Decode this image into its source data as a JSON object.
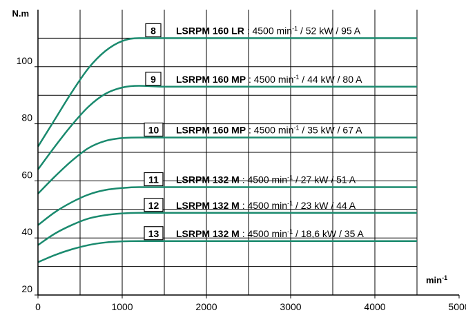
{
  "chart_data": {
    "type": "line",
    "ylabel": "N.m",
    "xlabel": "min-1",
    "xlim": [
      0,
      5000
    ],
    "ylim": [
      20,
      120
    ],
    "x_ticks": [
      "0",
      "1000",
      "2000",
      "3000",
      "4000",
      "5000"
    ],
    "y_ticks": [
      "20",
      "40",
      "60",
      "80",
      "100"
    ],
    "line_color": "#1a8a6e",
    "grid": true,
    "x": [
      0,
      200,
      400,
      600,
      800,
      1000,
      1200,
      1500,
      2000,
      3000,
      4000,
      4500
    ],
    "series": [
      {
        "num": "8",
        "model": "LSRPM 160 LR",
        "specs": " : 4500 min-1 / 52 kW / 95 A",
        "values": [
          72,
          81.5,
          91,
          99.5,
          105.5,
          109,
          110,
          110,
          110,
          110,
          110,
          110
        ]
      },
      {
        "num": "9",
        "model": "LSRPM 160 MP",
        "specs": " : 4500 min-1 / 44 kW / 80 A",
        "values": [
          64,
          72,
          79.5,
          86,
          90.5,
          92.7,
          93.3,
          93,
          93,
          93,
          93,
          93
        ]
      },
      {
        "num": "10",
        "model": "LSRPM 160 MP",
        "specs": " : 4500 min-1 / 35 kW / 67 A",
        "values": [
          55.5,
          61.5,
          67,
          71.5,
          74,
          75,
          75.2,
          75.2,
          75.2,
          75.2,
          75.2,
          75.2
        ]
      },
      {
        "num": "11",
        "model": "LSRPM 132 M",
        "specs": " : 4500 min-1 / 27 kW / 51 A",
        "values": [
          44.5,
          49,
          52.5,
          55.2,
          56.8,
          57.5,
          57.8,
          57.8,
          57.8,
          57.8,
          57.8,
          57.8
        ]
      },
      {
        "num": "12",
        "model": "LSRPM 132 M",
        "specs": " : 4500 min-1 / 23 kW / 44 A",
        "values": [
          37.5,
          41.5,
          44.5,
          46.8,
          48,
          48.6,
          48.8,
          48.8,
          48.8,
          48.8,
          48.8,
          48.8
        ]
      },
      {
        "num": "13",
        "model": "LSRPM 132 M",
        "specs": " : 4500 min-1 / 18,6 kW / 35 A",
        "values": [
          31.5,
          34,
          36,
          37.5,
          38.4,
          38.8,
          38.9,
          38.9,
          38.9,
          38.9,
          38.9,
          38.9
        ]
      }
    ]
  }
}
